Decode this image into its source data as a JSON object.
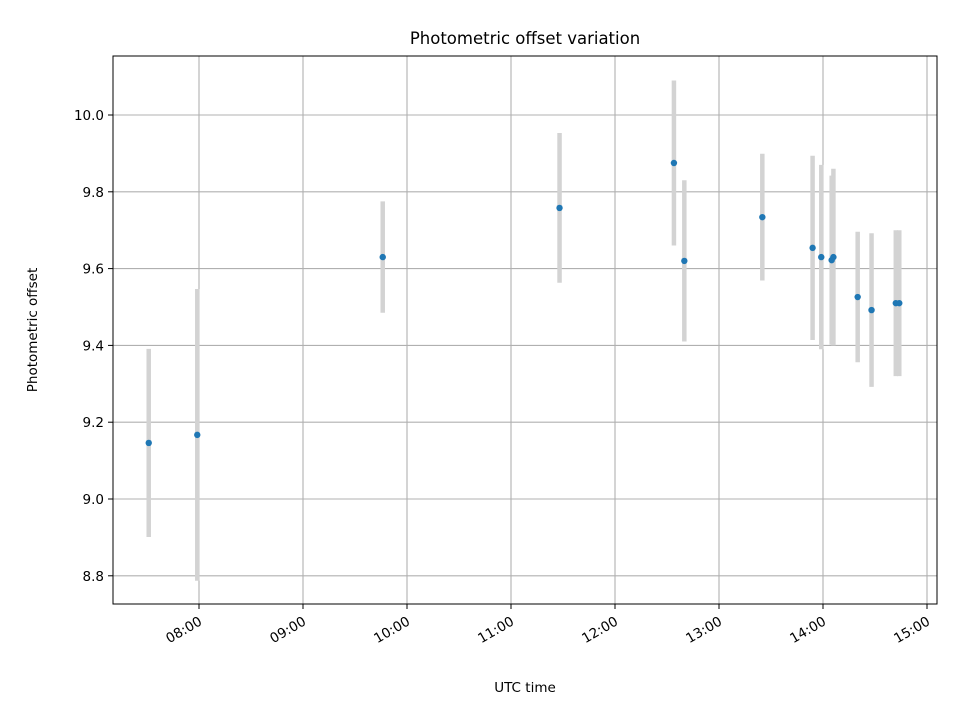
{
  "chart_data": {
    "type": "scatter",
    "title": "Photometric offset variation",
    "xlabel": "UTC time",
    "ylabel": "Photometric offset",
    "xlim": [
      "07:18",
      "15:08"
    ],
    "ylim": [
      8.73,
      10.155
    ],
    "grid": true,
    "x_ticks": [
      "08:00",
      "09:00",
      "10:00",
      "11:00",
      "12:00",
      "13:00",
      "14:00",
      "15:00"
    ],
    "y_ticks": [
      "8.8",
      "9.0",
      "9.2",
      "9.4",
      "9.6",
      "9.8",
      "10.0"
    ],
    "point_color": "#1f77b4",
    "errorbar_color": "#d3d3d3",
    "points": [
      {
        "x": "07:31",
        "y": 9.146,
        "err": 0.245
      },
      {
        "x": "07:59",
        "y": 9.167,
        "err": 0.38
      },
      {
        "x": "09:46",
        "y": 9.63,
        "err": 0.145
      },
      {
        "x": "11:28",
        "y": 9.758,
        "err": 0.195
      },
      {
        "x": "12:34",
        "y": 9.875,
        "err": 0.215
      },
      {
        "x": "12:40",
        "y": 9.62,
        "err": 0.21
      },
      {
        "x": "13:25",
        "y": 9.734,
        "err": 0.165
      },
      {
        "x": "13:54",
        "y": 9.654,
        "err": 0.24
      },
      {
        "x": "13:59",
        "y": 9.63,
        "err": 0.24
      },
      {
        "x": "14:05",
        "y": 9.622,
        "err": 0.22
      },
      {
        "x": "14:06",
        "y": 9.63,
        "err": 0.23
      },
      {
        "x": "14:20",
        "y": 9.526,
        "err": 0.17
      },
      {
        "x": "14:28",
        "y": 9.492,
        "err": 0.2
      },
      {
        "x": "14:42",
        "y": 9.51,
        "err": 0.19
      },
      {
        "x": "14:44",
        "y": 9.51,
        "err": 0.19
      }
    ]
  }
}
